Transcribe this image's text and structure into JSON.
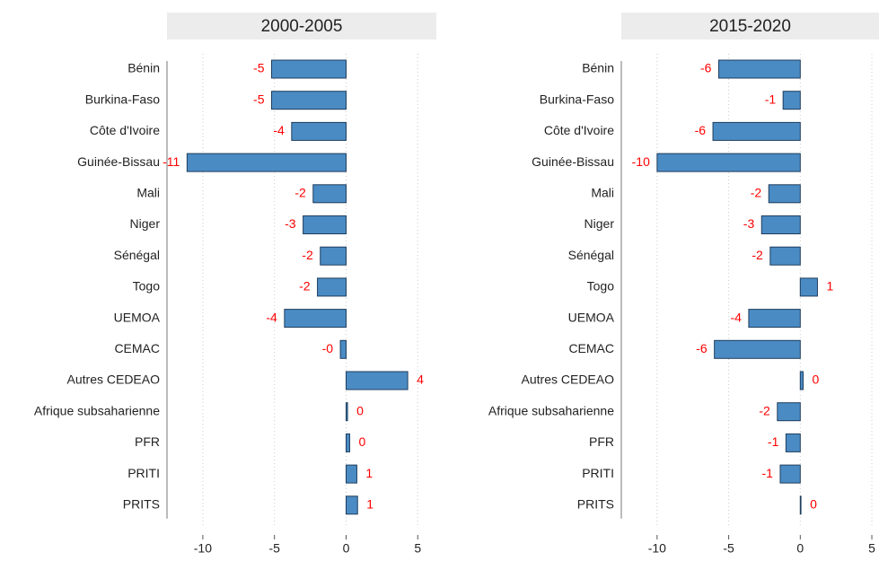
{
  "chart_data": [
    {
      "type": "bar",
      "orientation": "horizontal",
      "title": "2000-2005",
      "categories": [
        "Bénin",
        "Burkina-Faso",
        "Côte d'Ivoire",
        "Guinée-Bissau",
        "Mali",
        "Niger",
        "Sénégal",
        "Togo",
        "UEMOA",
        "CEMAC",
        "Autres CEDEAO",
        "Afrique subsaharienne",
        "PFR",
        "PRITI",
        "PRITS"
      ],
      "values": [
        -5.2,
        -5.2,
        -3.8,
        -11.1,
        -2.3,
        -3.0,
        -1.8,
        -2.0,
        -4.3,
        -0.4,
        4.3,
        0.1,
        0.25,
        0.75,
        0.8
      ],
      "value_labels": [
        "-5",
        "-5",
        "-4",
        "-11",
        "-2",
        "-3",
        "-2",
        "-2",
        "-4",
        "-0",
        "4",
        "0",
        "0",
        "1",
        "1"
      ],
      "color": "#4a8bc4",
      "label_color": "#ff0000",
      "xlim": [
        -12.5,
        6.3
      ],
      "xticks": [
        -10,
        -5,
        0,
        5
      ],
      "grid": true
    },
    {
      "type": "bar",
      "orientation": "horizontal",
      "title": "2015-2020",
      "categories": [
        "Bénin",
        "Burkina-Faso",
        "Côte d'Ivoire",
        "Guinée-Bissau",
        "Mali",
        "Niger",
        "Sénégal",
        "Togo",
        "UEMOA",
        "CEMAC",
        "Autres CEDEAO",
        "Afrique subsaharienne",
        "PFR",
        "PRITI",
        "PRITS"
      ],
      "values": [
        -5.7,
        -1.2,
        -6.1,
        -10.0,
        -2.2,
        -2.7,
        -2.1,
        1.2,
        -3.6,
        -6.0,
        0.2,
        -1.6,
        -1.0,
        -1.4,
        0.05
      ],
      "value_labels": [
        "-6",
        "-1",
        "-6",
        "-10",
        "-2",
        "-3",
        "-2",
        "1",
        "-4",
        "-6",
        "0",
        "-2",
        "-1",
        "-1",
        "0"
      ],
      "color": "#4a8bc4",
      "label_color": "#ff0000",
      "xlim": [
        -12.5,
        5.5
      ],
      "xticks": [
        -10,
        -5,
        0,
        5
      ],
      "grid": true
    }
  ]
}
